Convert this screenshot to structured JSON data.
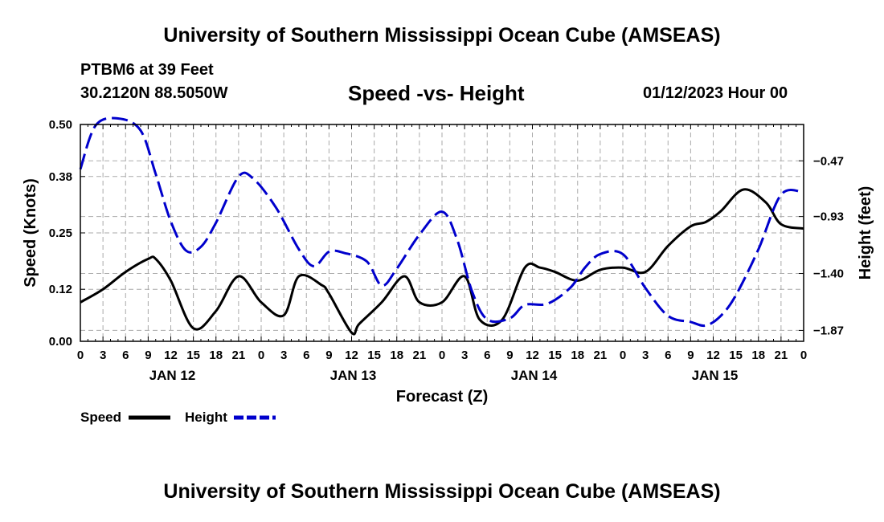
{
  "header": {
    "main_title": "University of Southern Mississippi Ocean Cube (AMSEAS)",
    "station": "PTBM6 at 39 Feet",
    "coords": "30.2120N  88.5050W",
    "subtitle": "Speed -vs- Height",
    "datetime": "01/12/2023 Hour 00"
  },
  "footer": {
    "title": "University of Southern Mississippi Ocean Cube (AMSEAS)"
  },
  "chart_data": {
    "type": "line",
    "title": "Speed -vs- Height",
    "xlabel": "Forecast (Z)",
    "ylabel": "Speed (Knots)",
    "y2label": "Height (feet)",
    "xlim": [
      0,
      96
    ],
    "ylim": [
      0,
      0.5
    ],
    "y2lim": [
      -1.96,
      -0.17
    ],
    "grid": true,
    "x_tick_labels": [
      "0",
      "3",
      "6",
      "9",
      "12",
      "15",
      "18",
      "21",
      "0",
      "3",
      "6",
      "9",
      "12",
      "15",
      "18",
      "21",
      "0",
      "3",
      "6",
      "9",
      "12",
      "15",
      "18",
      "21",
      "0",
      "3",
      "6",
      "9",
      "12",
      "15",
      "18",
      "21",
      "0"
    ],
    "day_labels": [
      {
        "label": "JAN 12",
        "hour": 12
      },
      {
        "label": "JAN 13",
        "hour": 36
      },
      {
        "label": "JAN 14",
        "hour": 60
      },
      {
        "label": "JAN 15",
        "hour": 84
      }
    ],
    "y_ticks": [
      0.0,
      0.12,
      0.25,
      0.38,
      0.5
    ],
    "y_tick_labels": [
      "0.00",
      "0.12",
      "0.25",
      "0.38",
      "0.50"
    ],
    "y2_ticks": [
      -1.87,
      -1.4,
      -0.93,
      -0.47
    ],
    "y2_tick_labels": [
      "−1.87",
      "−1.40",
      "−0.93",
      "−0.47"
    ],
    "series": [
      {
        "name": "Speed",
        "axis": "left",
        "color": "#000000",
        "dash": "solid",
        "x": [
          0,
          3,
          6,
          9,
          10,
          12,
          15,
          18,
          21,
          24,
          27,
          29,
          32,
          33,
          36,
          37,
          40,
          43,
          45,
          48,
          51,
          53,
          56,
          59,
          61,
          63,
          66,
          69,
          72,
          75,
          78,
          81,
          83,
          85,
          88,
          91,
          93,
          96
        ],
        "y": [
          0.09,
          0.12,
          0.16,
          0.19,
          0.19,
          0.14,
          0.03,
          0.07,
          0.15,
          0.09,
          0.06,
          0.15,
          0.13,
          0.11,
          0.02,
          0.04,
          0.09,
          0.15,
          0.09,
          0.09,
          0.15,
          0.05,
          0.05,
          0.17,
          0.17,
          0.16,
          0.14,
          0.165,
          0.17,
          0.16,
          0.22,
          0.265,
          0.275,
          0.3,
          0.35,
          0.32,
          0.27,
          0.26
        ]
      },
      {
        "name": "Height",
        "axis": "right",
        "color": "#0000cc",
        "dash": "dashed",
        "x": [
          0,
          2,
          5,
          8,
          10,
          12,
          14,
          16,
          18,
          21,
          23,
          26,
          29,
          31,
          33,
          35,
          38,
          40,
          42,
          45,
          48,
          50,
          52,
          54,
          57,
          59,
          62,
          65,
          67,
          69,
          72,
          75,
          78,
          81,
          83,
          85,
          87,
          90,
          93,
          96
        ],
        "y": [
          -0.54,
          -0.18,
          -0.12,
          -0.22,
          -0.58,
          -0.97,
          -1.21,
          -1.18,
          -0.98,
          -0.6,
          -0.62,
          -0.86,
          -1.2,
          -1.34,
          -1.22,
          -1.23,
          -1.3,
          -1.5,
          -1.36,
          -1.08,
          -0.89,
          -1.12,
          -1.55,
          -1.78,
          -1.77,
          -1.66,
          -1.65,
          -1.52,
          -1.35,
          -1.24,
          -1.24,
          -1.52,
          -1.75,
          -1.8,
          -1.83,
          -1.75,
          -1.58,
          -1.2,
          -0.75,
          -0.73
        ]
      }
    ]
  },
  "legend": {
    "position": "bottom-left",
    "speed_label": "Speed",
    "height_label": "Height"
  }
}
